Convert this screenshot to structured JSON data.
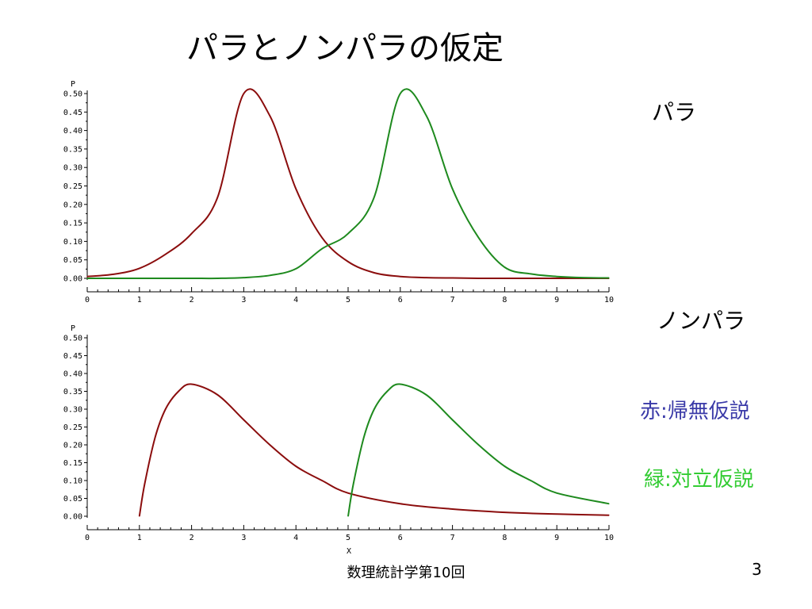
{
  "slide": {
    "title": "パラとノンパラの仮定",
    "para_label": "パラ",
    "nonpara_label": "ノンパラ",
    "legend_null": "赤:帰無仮説",
    "legend_alt": "緑:対立仮説",
    "footer": "数理統計学第10回",
    "page_number": "3"
  },
  "colors": {
    "null_curve": "#8b0d0d",
    "alt_curve": "#1e8a1e",
    "legend_null_text": "#3a3aa8",
    "legend_alt_text": "#33cc33"
  },
  "chart_data": [
    {
      "type": "line",
      "title": "",
      "xlabel": "",
      "ylabel": "P",
      "xlim": [
        0,
        10
      ],
      "ylim": [
        0,
        0.5
      ],
      "xticks": [
        "0",
        "1",
        "2",
        "3",
        "4",
        "5",
        "6",
        "7",
        "8",
        "9",
        "10"
      ],
      "yticks": [
        "0.00",
        "0.05",
        "0.10",
        "0.15",
        "0.20",
        "0.25",
        "0.30",
        "0.35",
        "0.40",
        "0.45",
        "0.50"
      ],
      "x": [
        0,
        0.5,
        1,
        1.5,
        2,
        2.5,
        3,
        3.5,
        4,
        4.5,
        5,
        5.5,
        6,
        6.5,
        7,
        7.5,
        8,
        8.5,
        9,
        9.5,
        10
      ],
      "series": [
        {
          "color": "#8b0d0d",
          "values": [
            0.005,
            0.011,
            0.027,
            0.065,
            0.121,
            0.22,
            0.5,
            0.44,
            0.242,
            0.11,
            0.045,
            0.015,
            0.005,
            0.002,
            0.001,
            0,
            0,
            0,
            0,
            0,
            0
          ]
        },
        {
          "color": "#1e8a1e",
          "values": [
            0,
            0,
            0,
            0,
            0,
            0,
            0.002,
            0.008,
            0.026,
            0.08,
            0.121,
            0.22,
            0.5,
            0.44,
            0.242,
            0.11,
            0.03,
            0.012,
            0.005,
            0.002,
            0.001
          ]
        }
      ]
    },
    {
      "type": "line",
      "title": "",
      "xlabel": "X",
      "ylabel": "P",
      "xlim": [
        0,
        10
      ],
      "ylim": [
        0,
        0.5
      ],
      "xticks": [
        "0",
        "1",
        "2",
        "3",
        "4",
        "5",
        "6",
        "7",
        "8",
        "9",
        "10"
      ],
      "yticks": [
        "0.00",
        "0.05",
        "0.10",
        "0.15",
        "0.20",
        "0.25",
        "0.30",
        "0.35",
        "0.40",
        "0.45",
        "0.50"
      ],
      "series": [
        {
          "color": "#8b0d0d",
          "x": [
            1,
            1.1,
            1.3,
            1.5,
            1.75,
            2,
            2.5,
            3,
            3.5,
            4,
            4.5,
            5,
            6,
            7,
            8,
            9,
            10
          ],
          "values": [
            0,
            0.09,
            0.22,
            0.3,
            0.35,
            0.37,
            0.34,
            0.27,
            0.2,
            0.14,
            0.1,
            0.065,
            0.035,
            0.02,
            0.011,
            0.006,
            0.003
          ]
        },
        {
          "color": "#1e8a1e",
          "x": [
            5,
            5.1,
            5.3,
            5.5,
            5.75,
            6,
            6.5,
            7,
            7.5,
            8,
            8.5,
            9,
            10
          ],
          "values": [
            0,
            0.09,
            0.22,
            0.3,
            0.35,
            0.37,
            0.34,
            0.27,
            0.2,
            0.14,
            0.1,
            0.065,
            0.035
          ]
        }
      ]
    }
  ]
}
